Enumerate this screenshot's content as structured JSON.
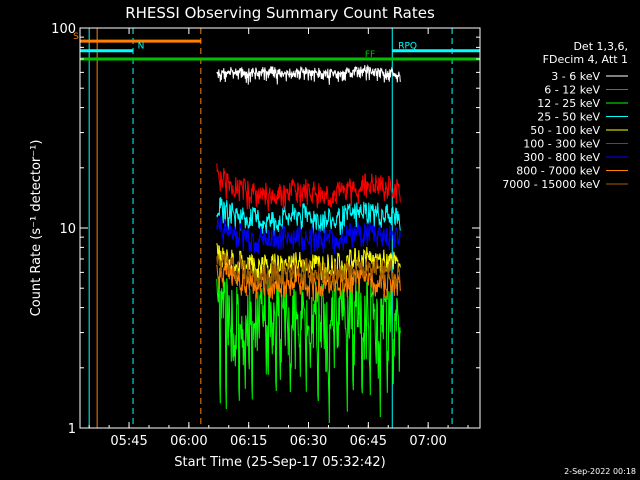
{
  "chart_data": {
    "type": "line",
    "title": "RHESSI Observing Summary Count Rates",
    "xlabel": "Start Time (25-Sep-17 05:32:42)",
    "ylabel": "Count Rate (s⁻¹ detector⁻¹)",
    "yscale": "log",
    "ylim": [
      1,
      100
    ],
    "xlim": [
      "05:32:42",
      "07:13:00"
    ],
    "x_ticks": [
      "05:45",
      "06:00",
      "06:15",
      "06:30",
      "06:45",
      "07:00"
    ],
    "y_ticks": [
      "1",
      "10",
      "100"
    ],
    "legend_header": [
      "Det 1,3,6,",
      "FDecim 4, Att 1"
    ],
    "legend_position": "right",
    "series": [
      {
        "name": "3 - 6 keV",
        "color": "#ffffff",
        "start": "06:07",
        "end": "06:53",
        "level": 60,
        "values_note": "",
        "samples": [
          60,
          62,
          61,
          63,
          60,
          62,
          61,
          60,
          62,
          63,
          61,
          60
        ]
      },
      {
        "name": "6 - 12 keV",
        "color": "#ff00ff",
        "start": "06:07",
        "end": "06:53",
        "samples": []
      },
      {
        "name": "12 - 25 keV",
        "color": "#00ff00",
        "start": "06:07",
        "end": "06:53",
        "samples": [
          4.5,
          4.0,
          3.8,
          4.2,
          4.0,
          3.9,
          4.1,
          4.0,
          4.3,
          4.1,
          4.0,
          4.2
        ]
      },
      {
        "name": "25 - 50 keV",
        "color": "#00ffff",
        "start": "06:07",
        "end": "06:53",
        "samples": [
          13,
          12,
          11.5,
          11,
          11.5,
          12,
          11.5,
          11,
          12,
          12.5,
          12,
          11.5
        ]
      },
      {
        "name": "50 - 100 keV",
        "color": "#ffff00",
        "start": "06:07",
        "end": "06:53",
        "samples": [
          7.5,
          7.0,
          6.8,
          6.6,
          6.8,
          7.0,
          6.8,
          6.6,
          7.0,
          7.2,
          7.0,
          6.8
        ]
      },
      {
        "name": "100 - 300 keV",
        "color": "#ff0000",
        "start": "06:07",
        "end": "06:53",
        "samples": [
          19,
          16.5,
          15.5,
          15,
          15.5,
          16,
          15.5,
          15,
          16,
          17,
          16.5,
          16
        ]
      },
      {
        "name": "300 - 800 keV",
        "color": "#0000ff",
        "start": "06:07",
        "end": "06:53",
        "samples": [
          10.5,
          9.8,
          9.3,
          9.0,
          9.2,
          9.4,
          9.2,
          9.0,
          9.5,
          9.8,
          9.6,
          9.2
        ]
      },
      {
        "name": "800 - 7000 keV",
        "color": "#ff8000",
        "start": "06:07",
        "end": "06:53",
        "samples": [
          6.2,
          5.8,
          5.5,
          5.3,
          5.4,
          5.6,
          5.4,
          5.3,
          5.6,
          5.8,
          5.6,
          5.4
        ]
      },
      {
        "name": "7000 - 15000 keV",
        "color": "#a06000",
        "start": "06:07",
        "end": "06:53",
        "samples": [
          7.0,
          6.6,
          6.3,
          6.1,
          6.2,
          6.4,
          6.2,
          6.1,
          6.4,
          6.6,
          6.4,
          6.2
        ]
      }
    ],
    "flag_bars": [
      {
        "label": "S",
        "color": "#ff8000",
        "start": "05:32:42",
        "end": "06:03",
        "level": 86
      },
      {
        "label": "N",
        "color": "#00ffff",
        "start": "05:32:42",
        "end": "05:46",
        "level": 77
      },
      {
        "label": "RPQ",
        "color": "#00ffff",
        "start": "06:51",
        "end": "07:13",
        "level": 77
      },
      {
        "label": "FF",
        "color": "#00c000",
        "start": "05:32:42",
        "end": "07:13",
        "level": 70
      }
    ],
    "vertical_markers": [
      {
        "time": "05:35",
        "color": "#00ffff",
        "style": "solid"
      },
      {
        "time": "05:37",
        "color": "#ff8000",
        "style": "solid"
      },
      {
        "time": "05:46",
        "color": "#00ffff",
        "style": "dashed"
      },
      {
        "time": "06:03",
        "color": "#ff8000",
        "style": "dashed"
      },
      {
        "time": "06:51",
        "color": "#00ffff",
        "style": "solid"
      },
      {
        "time": "07:06",
        "color": "#00ffff",
        "style": "dashed"
      }
    ]
  },
  "timestamp": "2-Sep-2022 00:18"
}
